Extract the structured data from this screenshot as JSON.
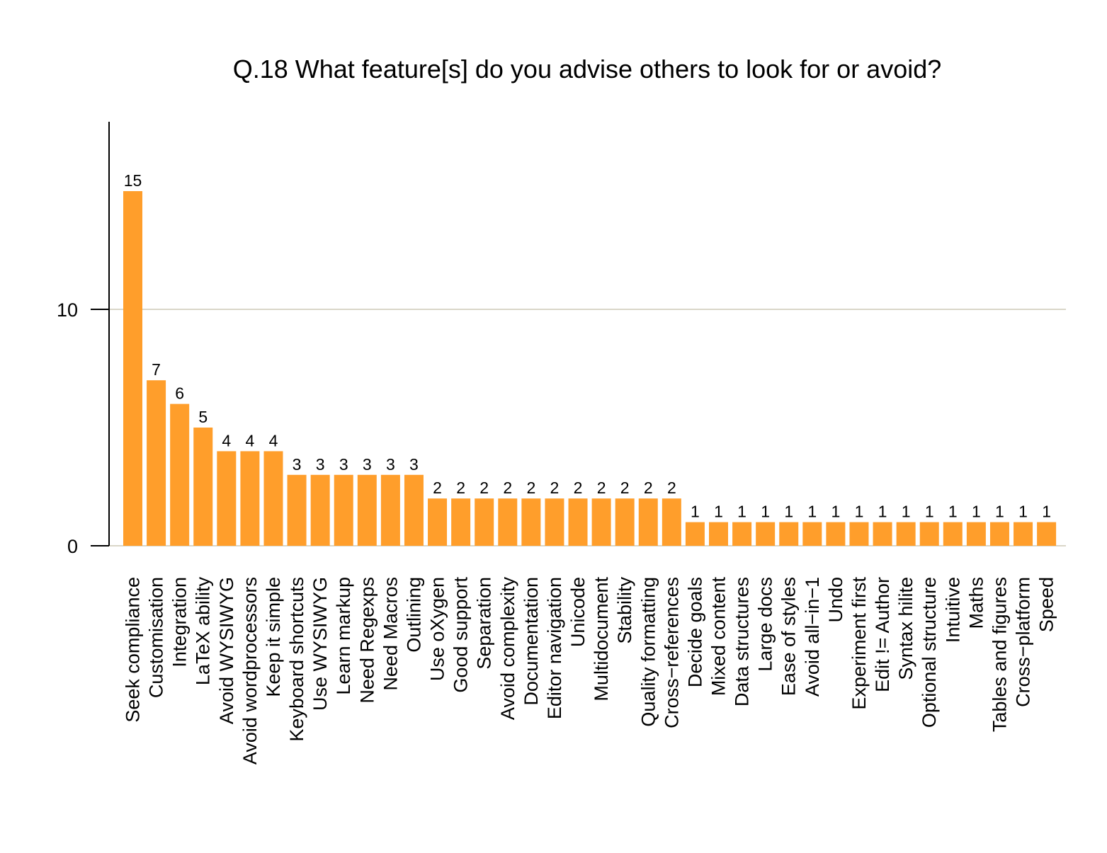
{
  "chart_data": {
    "type": "bar",
    "title": "Q.18 What feature[s] do you advise others to look for or avoid?",
    "xlabel": "",
    "ylabel": "",
    "ylim": [
      0,
      18
    ],
    "yticks": [
      0,
      10
    ],
    "grid": true,
    "legend": "none",
    "colors": {
      "bar": "#FF9E2B",
      "gridline": "#DAD6C8",
      "axis": "#000000"
    },
    "categories": [
      "Seek compliance",
      "Customisation",
      "Integration",
      "LaTeX ability",
      "Avoid WYSIWYG",
      "Avoid wordprocessors",
      "Keep it simple",
      "Keyboard shortcuts",
      "Use WYSIWYG",
      "Learn markup",
      "Need Regexps",
      "Need Macros",
      "Outlining",
      "Use oXygen",
      "Good support",
      "Separation",
      "Avoid complexity",
      "Documentation",
      "Editor navigation",
      "Unicode",
      "Multidocument",
      "Stability",
      "Quality formatting",
      "Cross−references",
      "Decide goals",
      "Mixed content",
      "Data structures",
      "Large docs",
      "Ease of styles",
      "Avoid all−in−1",
      "Undo",
      "Experiment first",
      "Edit != Author",
      "Syntax hilite",
      "Optional structure",
      "Intuitive",
      "Maths",
      "Tables and figures",
      "Cross−platform",
      "Speed"
    ],
    "values": [
      15,
      7,
      6,
      5,
      4,
      4,
      4,
      3,
      3,
      3,
      3,
      3,
      3,
      2,
      2,
      2,
      2,
      2,
      2,
      2,
      2,
      2,
      2,
      2,
      1,
      1,
      1,
      1,
      1,
      1,
      1,
      1,
      1,
      1,
      1,
      1,
      1,
      1,
      1,
      1
    ]
  }
}
